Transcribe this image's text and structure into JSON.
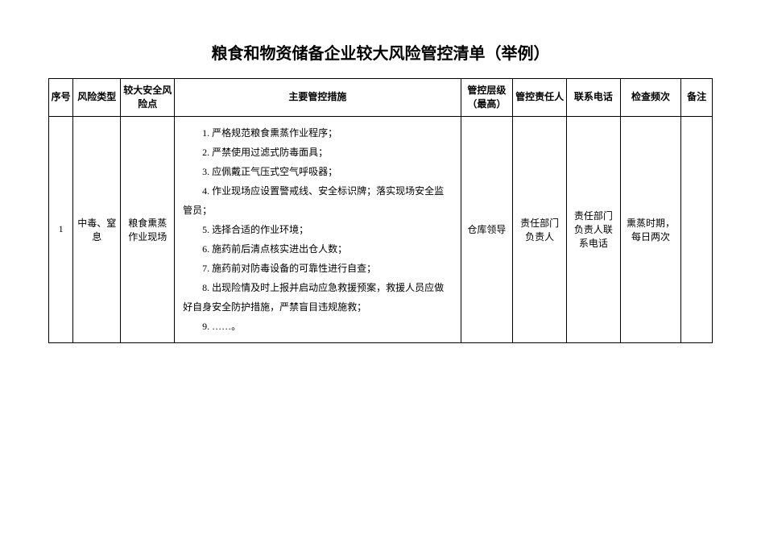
{
  "title": "粮食和物资储备企业较大风险管控清单（举例）",
  "table": {
    "headers": [
      "序号",
      "风险类型",
      "较大安全风险点",
      "主要管控措施",
      "管控层级（最高）",
      "管控责任人",
      "联系电话",
      "检查频次",
      "备注"
    ],
    "row": {
      "seq": "1",
      "risk_type": "中毒、窒息",
      "risk_point": "粮食熏蒸作业现场",
      "measures": [
        "1. 严格规范粮食熏蒸作业程序；",
        "2. 严禁使用过滤式防毒面具；",
        "3. 应佩戴正气压式空气呼吸器；",
        "4. 作业现场应设置警戒线、安全标识牌；落实现场安全监管员；",
        "5. 选择合适的作业环境；",
        "6. 施药前后清点核实进出仓人数；",
        "7. 施药前对防毒设备的可靠性进行自查；",
        "8. 出现险情及时上报并启动应急救援预案，救援人员应做好自身安全防护措施，严禁盲目违规施救；",
        "9. ……。"
      ],
      "control_level": "仓库领导",
      "responsible_person": "责任部门负责人",
      "contact_phone": "责任部门负责人联系电话",
      "check_frequency": "熏蒸时期，每日两次",
      "remark": ""
    }
  }
}
